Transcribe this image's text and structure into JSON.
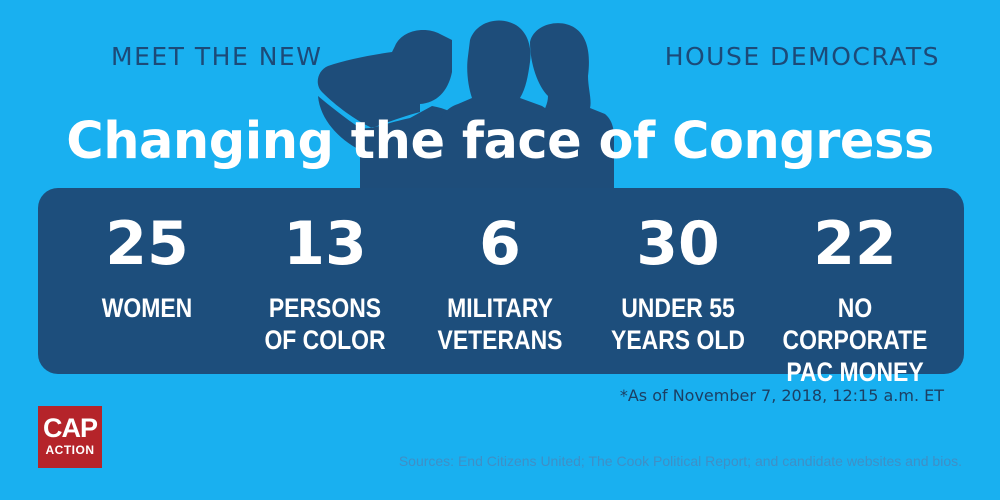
{
  "kicker": {
    "left": "MEET THE NEW",
    "right": "HOUSE DEMOCRATS"
  },
  "headline": "Changing the face of Congress",
  "stats": [
    {
      "number": "25",
      "label": "WOMEN"
    },
    {
      "number": "13",
      "label": "PERSONS\nOF COLOR"
    },
    {
      "number": "6",
      "label": "MILITARY\nVETERANS"
    },
    {
      "number": "30",
      "label": "UNDER 55\nYEARS OLD"
    },
    {
      "number": "22",
      "label": "NO CORPORATE\nPAC MONEY"
    }
  ],
  "footnote": "*As of November 7, 2018, 12:15 a.m. ET",
  "logo": {
    "main": "CAP",
    "sub": "ACTION"
  },
  "sources": "Sources: End Citizens United; The Cook Political Report; and candidate websites and bios.",
  "colors": {
    "background": "#19b0f0",
    "panel": "#1d4e7c",
    "silhouette": "#1e4d7a",
    "logo": "#b5242a"
  }
}
